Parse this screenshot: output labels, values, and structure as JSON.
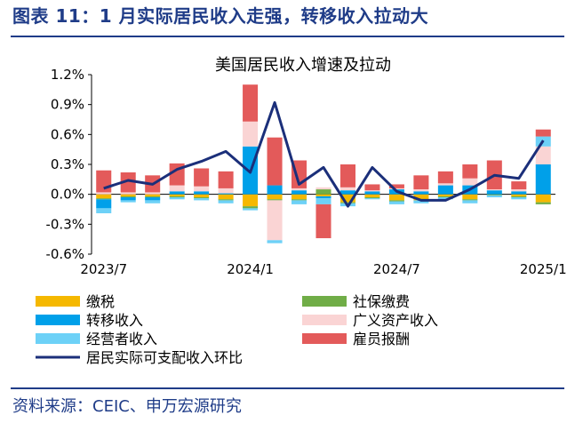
{
  "figure_title": "图表 11：1 月实际居民收入走强，转移收入拉动大",
  "source": "资料来源：CEIC、申万宏源研究",
  "chart_data": {
    "type": "bar",
    "title": "美国居民收入增速及拉动",
    "stacked": true,
    "xlabel": "",
    "ylabel": "",
    "ylim": [
      -0.6,
      1.2
    ],
    "yticks": [
      "-0.6%",
      "-0.3%",
      "0.0%",
      "0.3%",
      "0.6%",
      "0.9%",
      "1.2%"
    ],
    "x_tick_labels": [
      {
        "index": 0,
        "label": "2023/7"
      },
      {
        "index": 6,
        "label": "2024/1"
      },
      {
        "index": 12,
        "label": "2024/7"
      },
      {
        "index": 18,
        "label": "2025/1"
      }
    ],
    "categories": [
      "2023/7",
      "2023/8",
      "2023/9",
      "2023/10",
      "2023/11",
      "2023/12",
      "2024/1",
      "2024/2",
      "2024/3",
      "2024/4",
      "2024/5",
      "2024/6",
      "2024/7",
      "2024/8",
      "2024/9",
      "2024/10",
      "2024/11",
      "2024/12",
      "2025/1"
    ],
    "grid": false,
    "legend_position": "bottom",
    "series": [
      {
        "name": "缴税",
        "color": "#f5b800",
        "values": [
          -0.04,
          -0.02,
          -0.02,
          -0.02,
          -0.03,
          -0.05,
          -0.12,
          -0.05,
          -0.05,
          -0.02,
          -0.08,
          -0.03,
          -0.06,
          -0.06,
          -0.02,
          -0.05,
          0.0,
          -0.02,
          -0.08
        ]
      },
      {
        "name": "社保缴费",
        "color": "#70ad47",
        "values": [
          -0.01,
          -0.01,
          -0.01,
          -0.01,
          -0.01,
          -0.01,
          -0.02,
          -0.01,
          -0.01,
          0.05,
          -0.01,
          -0.01,
          -0.01,
          0.0,
          -0.01,
          -0.01,
          -0.01,
          -0.01,
          -0.02
        ]
      },
      {
        "name": "转移收入",
        "color": "#00a0e9",
        "values": [
          -0.09,
          -0.03,
          -0.03,
          0.03,
          0.03,
          0.01,
          0.48,
          0.09,
          0.04,
          -0.02,
          0.04,
          0.03,
          0.05,
          0.03,
          0.09,
          0.09,
          0.04,
          0.03,
          0.3
        ]
      },
      {
        "name": "广义资产收入",
        "color": "#fad4d4",
        "values": [
          0.02,
          0.02,
          0.02,
          0.06,
          0.05,
          0.05,
          0.25,
          -0.4,
          0.02,
          0.02,
          0.03,
          0.01,
          0.01,
          0.02,
          0.02,
          0.07,
          0.01,
          0.02,
          0.18
        ]
      },
      {
        "name": "经营者收入",
        "color": "#6dd1f7",
        "values": [
          -0.05,
          -0.02,
          -0.03,
          -0.02,
          -0.02,
          -0.03,
          -0.02,
          -0.03,
          -0.04,
          -0.06,
          -0.03,
          -0.01,
          -0.03,
          -0.03,
          -0.02,
          -0.03,
          -0.02,
          -0.02,
          0.1
        ]
      },
      {
        "name": "雇员报酬",
        "color": "#e35a5a",
        "values": [
          0.22,
          0.2,
          0.17,
          0.22,
          0.18,
          0.17,
          0.37,
          0.48,
          0.28,
          -0.34,
          0.23,
          0.06,
          0.04,
          0.14,
          0.12,
          0.14,
          0.29,
          0.08,
          0.07
        ]
      },
      {
        "name": "居民实际可支配收入环比",
        "color": "#1b2f7a",
        "type": "line",
        "values": [
          0.06,
          0.14,
          0.1,
          0.25,
          0.33,
          0.43,
          0.22,
          0.92,
          0.1,
          0.27,
          -0.12,
          0.27,
          0.03,
          -0.06,
          -0.06,
          0.05,
          0.19,
          0.16,
          0.54
        ]
      }
    ]
  }
}
